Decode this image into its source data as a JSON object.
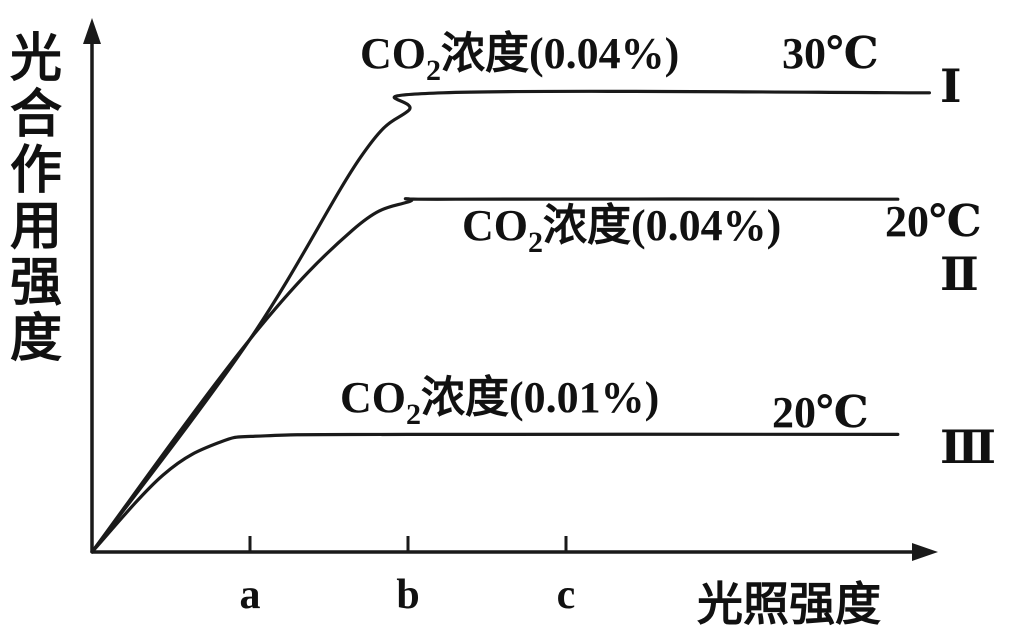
{
  "chart_data": {
    "type": "line",
    "ylabel": "光合作用强度",
    "xlabel": "光照强度",
    "x_ticks": [
      "a",
      "b",
      "c"
    ],
    "series": [
      {
        "name": "Ⅰ",
        "label": "CO₂浓度(0.04%) 30℃",
        "co2": "CO",
        "co2_sub": "2",
        "conc": "浓度(0.04%)",
        "temp": "30℃",
        "points": [
          [
            0,
            0
          ],
          [
            1,
            1.52
          ],
          [
            1.7,
            2.82
          ],
          [
            2,
            3.15
          ],
          [
            2.22,
            3.28
          ],
          [
            5.3,
            3.28
          ]
        ]
      },
      {
        "name": "Ⅱ",
        "label": "CO₂浓度(0.04%) 20℃",
        "co2": "CO",
        "co2_sub": "2",
        "conc": "浓度(0.04%)",
        "temp": "20℃",
        "points": [
          [
            0,
            0
          ],
          [
            1,
            1.52
          ],
          [
            1.65,
            2.3
          ],
          [
            2,
            2.5
          ],
          [
            2.3,
            2.52
          ],
          [
            5.1,
            2.52
          ]
        ]
      },
      {
        "name": "Ⅲ",
        "label": "CO₂浓度(0.01%) 20℃",
        "co2": "CO",
        "co2_sub": "2",
        "conc": "浓度(0.01%)",
        "temp": "20℃",
        "points": [
          [
            0,
            0
          ],
          [
            0.45,
            0.55
          ],
          [
            0.8,
            0.78
          ],
          [
            1.1,
            0.83
          ],
          [
            2,
            0.84
          ],
          [
            5.1,
            0.84
          ]
        ]
      }
    ]
  }
}
